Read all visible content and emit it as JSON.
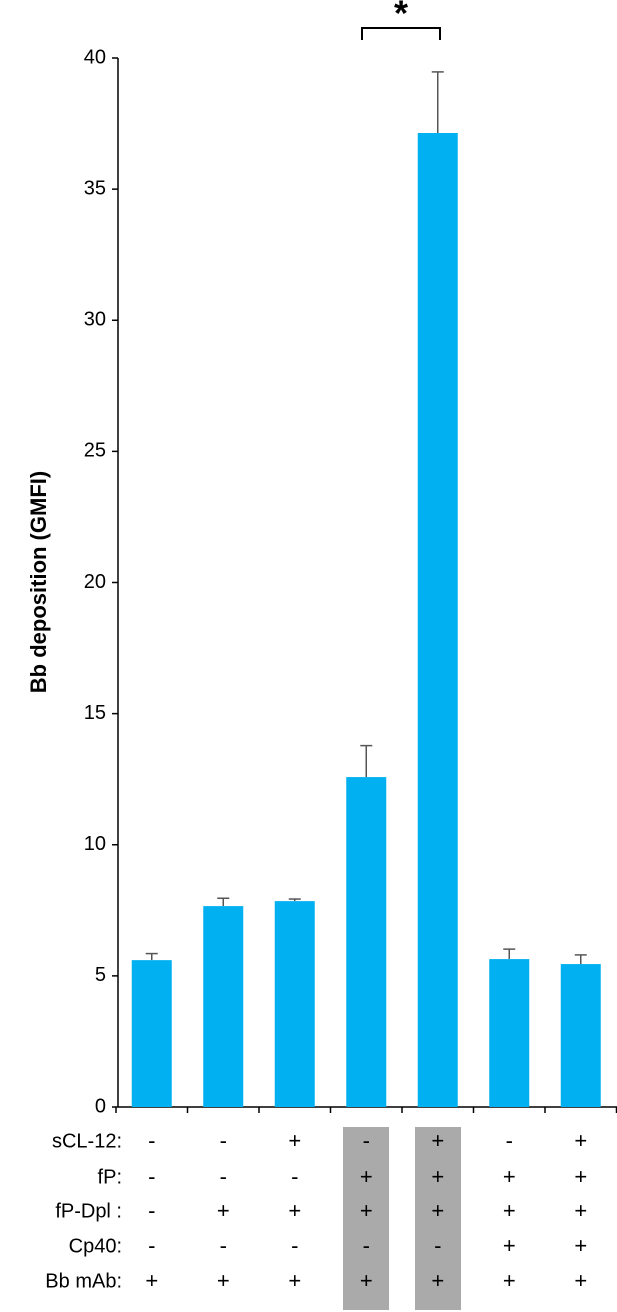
{
  "chart_data": {
    "type": "bar",
    "y_label": "Bb deposition (GMFI)",
    "categories": [
      null,
      null,
      null,
      null,
      null,
      null,
      null
    ],
    "values": [
      5.6,
      7.66,
      7.85,
      12.58,
      37.14,
      5.64,
      5.45
    ],
    "errors": [
      0.25,
      0.3,
      0.08,
      1.2,
      2.33,
      0.38,
      0.35
    ],
    "color": "#00b0f0",
    "ylim": [
      0,
      40
    ],
    "yticks": [
      0,
      5,
      10,
      15,
      20,
      25,
      30,
      35,
      40
    ],
    "annotations": [
      "*"
    ],
    "table": {
      "row_labels": [
        "sCL-12:",
        "fP:",
        "fP-Dpl :",
        "Cp40:",
        "Bb mAb:"
      ],
      "rows": [
        [
          "-",
          "-",
          "+",
          "-",
          "+",
          "-",
          "+"
        ],
        [
          "-",
          "-",
          "-",
          "+",
          "+",
          "+",
          "+"
        ],
        [
          "-",
          "+",
          "+",
          "+",
          "+",
          "+",
          "+"
        ],
        [
          "-",
          "-",
          "-",
          "-",
          "-",
          "+",
          "+"
        ],
        [
          "+",
          "+",
          "+",
          "+",
          "+",
          "+",
          "+"
        ]
      ]
    }
  }
}
